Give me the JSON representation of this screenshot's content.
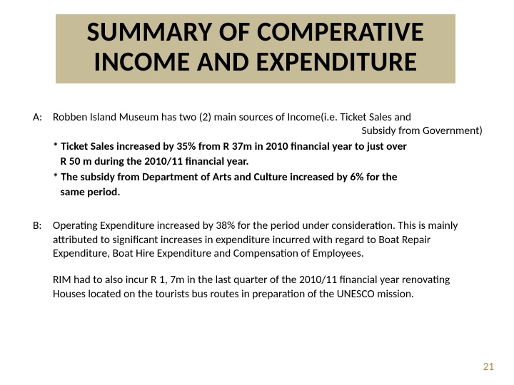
{
  "colors": {
    "title_bg": "#c6bc97",
    "text": "#000000",
    "page_number": "#b78341",
    "background": "#ffffff"
  },
  "typography": {
    "title_fontsize": 38,
    "title_weight": 700,
    "body_fontsize": 15.5,
    "body_lineheight": 1.25,
    "page_number_fontsize": 15
  },
  "title": {
    "line1": "SUMMARY OF COMPERATIVE",
    "line2": "INCOME AND EXPENDITURE"
  },
  "section_a": {
    "label": "A:",
    "intro_part1": "Robben Island Museum has two (2) main sources of Income(i.e. Ticket Sales and",
    "intro_part2": "Subsidy from Government)",
    "bullet1_l1": "* Ticket Sales increased by 35% from R 37m  in 2010 financial  year  to just over",
    "bullet1_l2": "   R   50 m during the 2010/11 financial year.",
    "bullet2_l1": "* The subsidy from Department of Arts and Culture increased  by 6% for the",
    "bullet2_l2": "   same period."
  },
  "section_b": {
    "label": "B:",
    "para1": "Operating Expenditure increased by 38% for the period under consideration. This is mainly attributed to significant  increases in expenditure incurred with regard to Boat Repair Expenditure, Boat Hire Expenditure and Compensation of Employees.",
    "para2": "RIM had to also incur R 1, 7m in the last quarter of the 2010/11 financial year renovating Houses located on the tourists bus routes in preparation of the UNESCO mission."
  },
  "page_number": "21"
}
